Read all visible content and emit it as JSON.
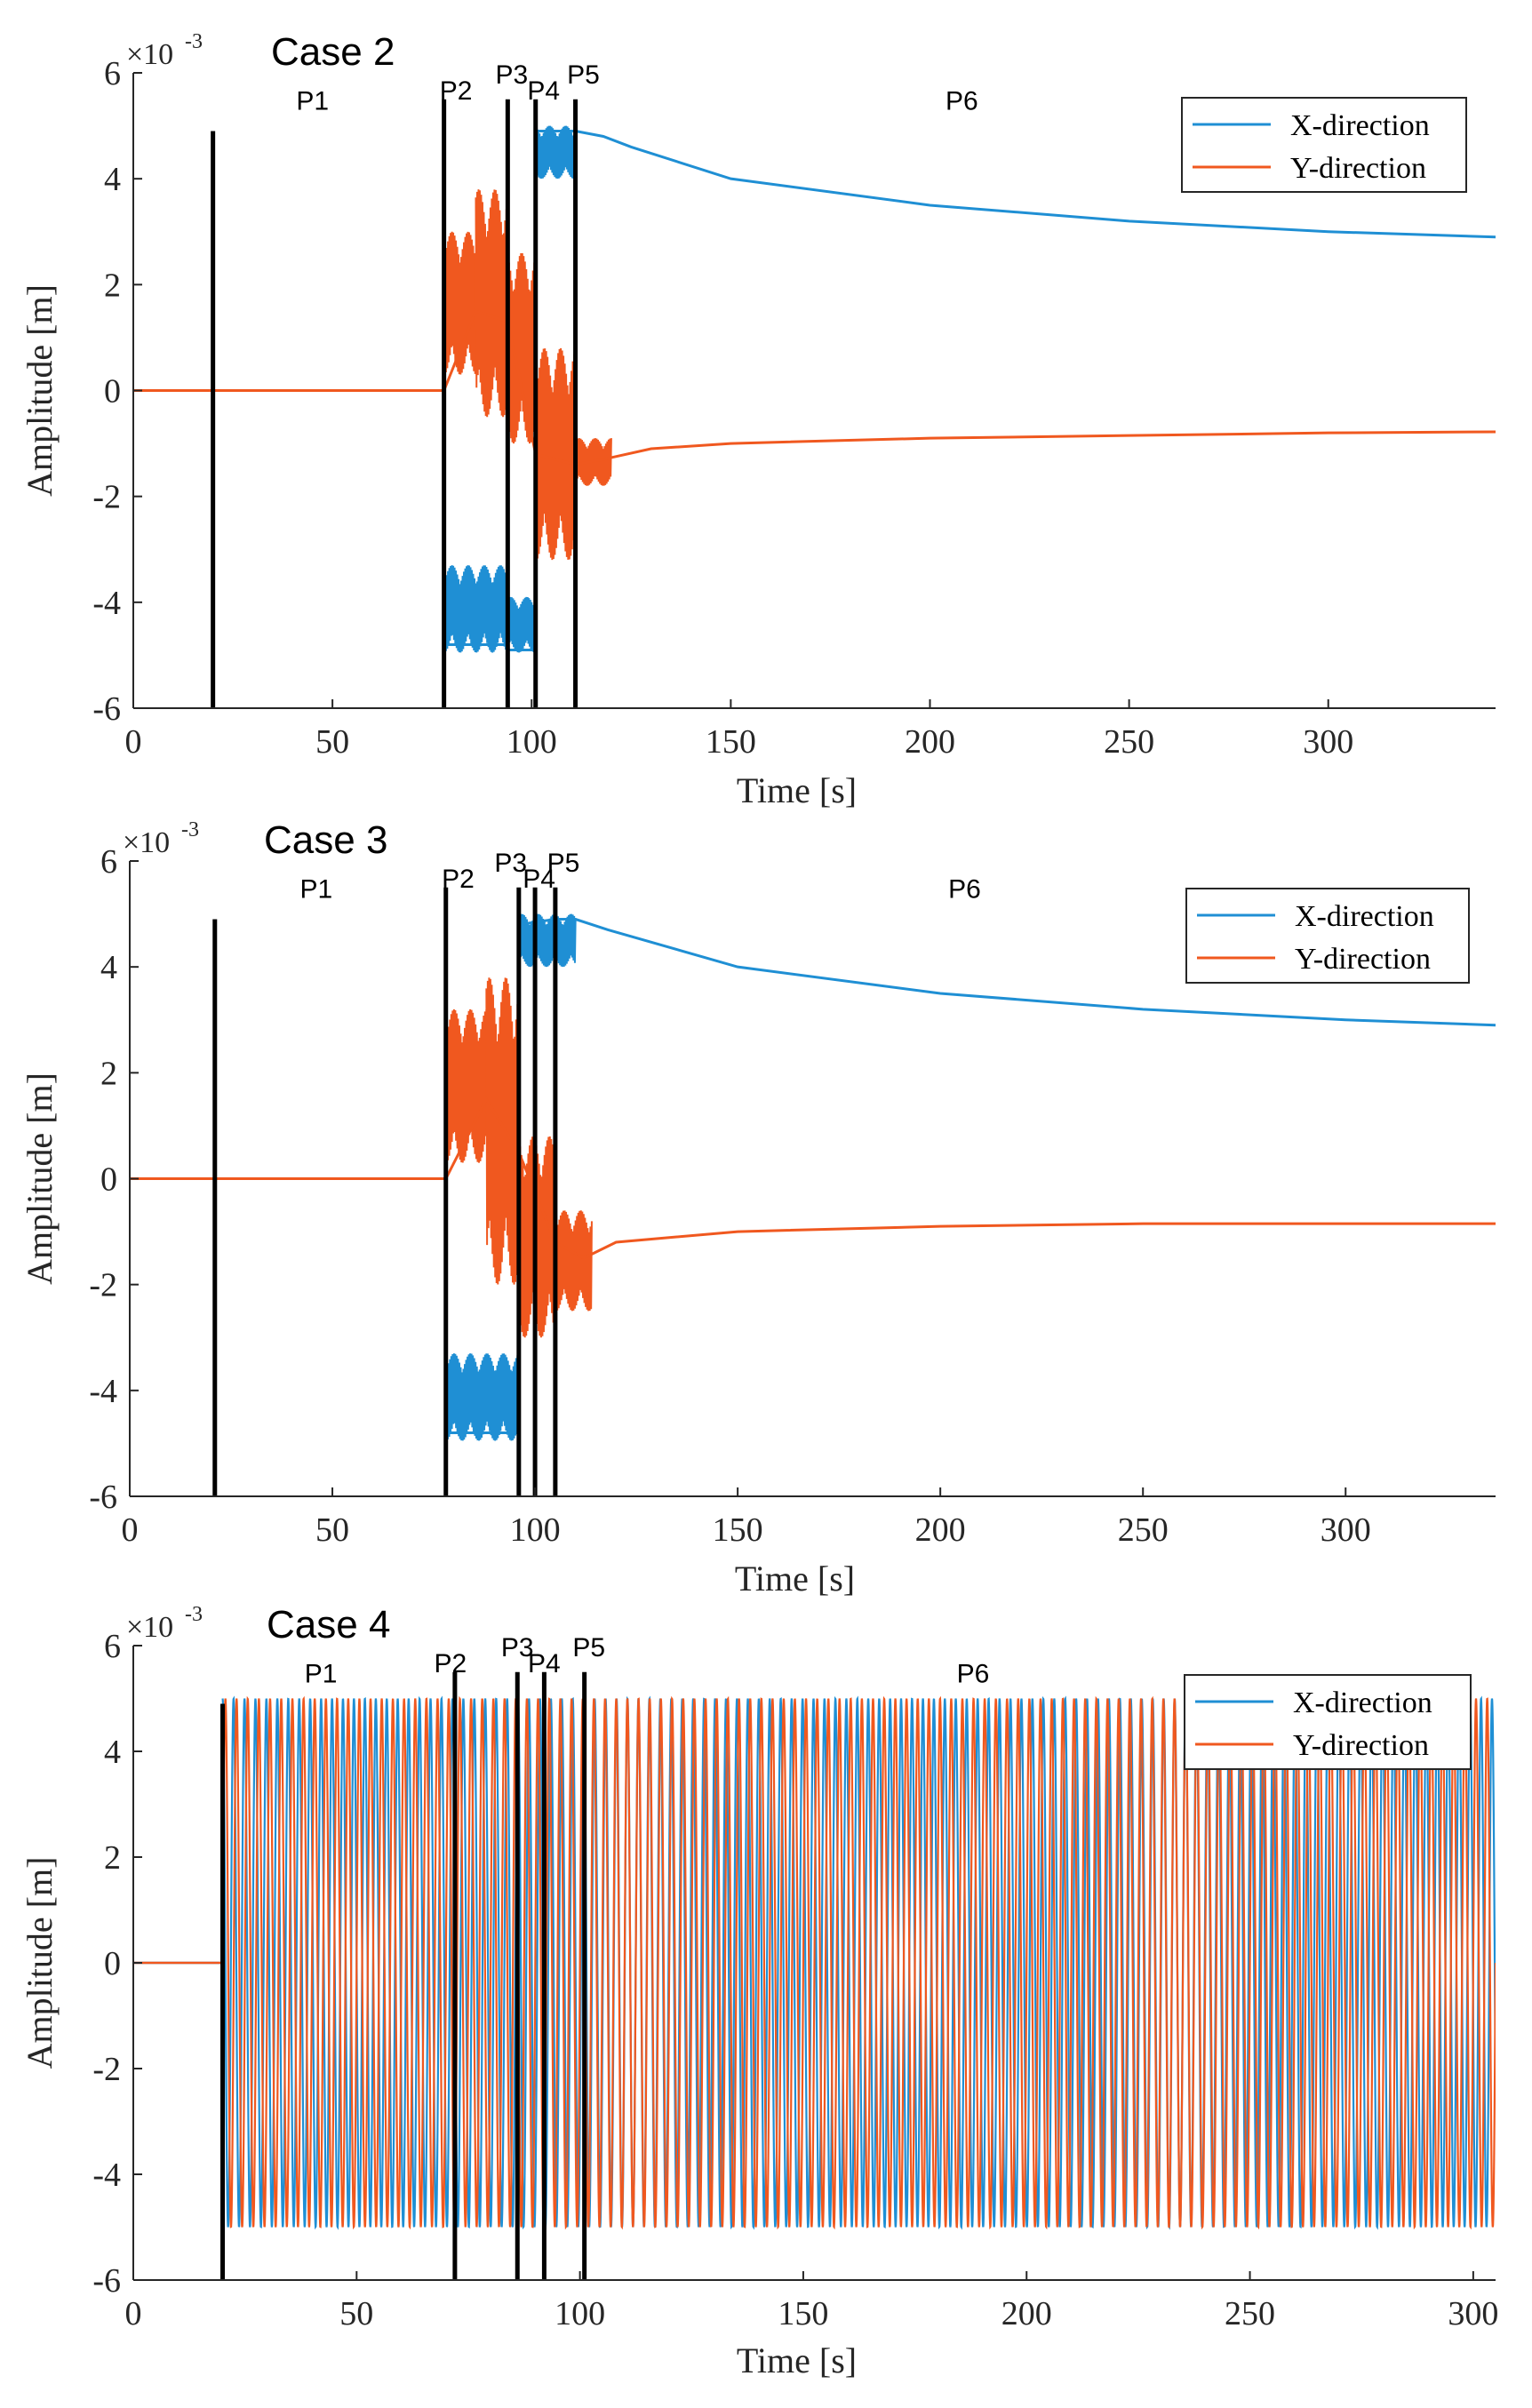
{
  "chart_data": [
    {
      "type": "line",
      "title": "Case 2",
      "xlabel": "Time [s]",
      "ylabel": "Amplitude [m]",
      "y_exponent": "×10",
      "y_exponent_power": "-3",
      "xlim": [
        0,
        342
      ],
      "ylim": [
        -6,
        6
      ],
      "xticks": [
        0,
        50,
        100,
        150,
        200,
        250,
        300
      ],
      "xtick_labels": [
        "0",
        "50",
        "100",
        "150",
        "200",
        "250",
        "300"
      ],
      "yticks": [
        -6,
        -4,
        -2,
        0,
        2,
        4,
        6
      ],
      "ytick_labels": [
        "-6",
        "-4",
        "-2",
        "0",
        "2",
        "4",
        "6"
      ],
      "legend": [
        "X-direction",
        "Y-direction"
      ],
      "legend_position": "top-right",
      "phase_lines": [
        20,
        78,
        94,
        101,
        111
      ],
      "phases": [
        {
          "label": "P1",
          "x": 45
        },
        {
          "label": "P2",
          "x": 81
        },
        {
          "label": "P3",
          "x": 95
        },
        {
          "label": "P4",
          "x": 103
        },
        {
          "label": "P5",
          "x": 113
        },
        {
          "label": "P6",
          "x": 208
        }
      ],
      "series": [
        {
          "name": "X-direction",
          "color": "#1f8fd4",
          "x": [
            0,
            78,
            78,
            94,
            94,
            101,
            101,
            111,
            118,
            125,
            150,
            200,
            250,
            300,
            342
          ],
          "y": [
            0,
            0,
            -4.8,
            -4.8,
            -4.9,
            -4.9,
            4.9,
            4.9,
            4.8,
            4.6,
            4.0,
            3.5,
            3.2,
            3.0,
            2.9
          ],
          "bands": [
            {
              "x0": 78,
              "x1": 94,
              "lo": -4.95,
              "hi": -3.3
            },
            {
              "x0": 94,
              "x1": 101,
              "lo": -4.95,
              "hi": -3.9
            },
            {
              "x0": 101,
              "x1": 111,
              "lo": 4.0,
              "hi": 5.0
            }
          ]
        },
        {
          "name": "Y-direction",
          "color": "#f0581f",
          "x": [
            0,
            78,
            86,
            94,
            101,
            111,
            118,
            130,
            150,
            200,
            250,
            300,
            342
          ],
          "y": [
            0,
            0,
            1.5,
            1.3,
            -1.2,
            -1.4,
            -1.3,
            -1.1,
            -1.0,
            -0.9,
            -0.85,
            -0.8,
            -0.78
          ],
          "bands": [
            {
              "x0": 78,
              "x1": 86,
              "lo": 0.3,
              "hi": 3.0
            },
            {
              "x0": 86,
              "x1": 94,
              "lo": -0.5,
              "hi": 3.8
            },
            {
              "x0": 94,
              "x1": 101,
              "lo": -1.0,
              "hi": 2.6
            },
            {
              "x0": 101,
              "x1": 111,
              "lo": -3.2,
              "hi": 0.8
            },
            {
              "x0": 111,
              "x1": 120,
              "lo": -1.8,
              "hi": -0.9
            }
          ]
        }
      ]
    },
    {
      "type": "line",
      "title": "Case 3",
      "xlabel": "Time [s]",
      "ylabel": "Amplitude [m]",
      "y_exponent": "×10",
      "y_exponent_power": "-3",
      "xlim": [
        0,
        337
      ],
      "ylim": [
        -6,
        6
      ],
      "xticks": [
        0,
        50,
        100,
        150,
        200,
        250,
        300
      ],
      "xtick_labels": [
        "0",
        "50",
        "100",
        "150",
        "200",
        "250",
        "300"
      ],
      "yticks": [
        -6,
        -4,
        -2,
        0,
        2,
        4,
        6
      ],
      "ytick_labels": [
        "-6",
        "-4",
        "-2",
        "0",
        "2",
        "4",
        "6"
      ],
      "legend": [
        "X-direction",
        "Y-direction"
      ],
      "legend_position": "top-right",
      "phase_lines": [
        21,
        78,
        96,
        100,
        105
      ],
      "phases": [
        {
          "label": "P1",
          "x": 46
        },
        {
          "label": "P2",
          "x": 81
        },
        {
          "label": "P3",
          "x": 94
        },
        {
          "label": "P4",
          "x": 101
        },
        {
          "label": "P5",
          "x": 107
        },
        {
          "label": "P6",
          "x": 206
        }
      ],
      "series": [
        {
          "name": "X-direction",
          "color": "#1f8fd4",
          "x": [
            0,
            78,
            78,
            96,
            96,
            105,
            110,
            118,
            150,
            200,
            250,
            300,
            337
          ],
          "y": [
            0,
            0,
            -4.8,
            -4.8,
            4.8,
            4.9,
            4.9,
            4.7,
            4.0,
            3.5,
            3.2,
            3.0,
            2.9
          ],
          "bands": [
            {
              "x0": 78,
              "x1": 96,
              "lo": -4.95,
              "hi": -3.3
            },
            {
              "x0": 96,
              "x1": 110,
              "lo": 4.0,
              "hi": 5.0
            }
          ]
        },
        {
          "name": "Y-direction",
          "color": "#f0581f",
          "x": [
            0,
            78,
            88,
            96,
            105,
            112,
            120,
            150,
            200,
            250,
            300,
            337
          ],
          "y": [
            0,
            0,
            1.5,
            0.5,
            -1.2,
            -1.5,
            -1.2,
            -1.0,
            -0.9,
            -0.85,
            -0.85,
            -0.85
          ],
          "bands": [
            {
              "x0": 78,
              "x1": 88,
              "lo": 0.3,
              "hi": 3.2
            },
            {
              "x0": 88,
              "x1": 96,
              "lo": -2.0,
              "hi": 3.8
            },
            {
              "x0": 96,
              "x1": 105,
              "lo": -3.0,
              "hi": 0.8
            },
            {
              "x0": 105,
              "x1": 114,
              "lo": -2.5,
              "hi": -0.6
            }
          ]
        }
      ]
    },
    {
      "type": "line",
      "title": "Case 4",
      "xlabel": "Time [s]",
      "ylabel": "Amplitude [m]",
      "y_exponent": "×10",
      "y_exponent_power": "-3",
      "xlim": [
        0,
        305
      ],
      "ylim": [
        -6,
        6
      ],
      "xticks": [
        0,
        50,
        100,
        150,
        200,
        250,
        300
      ],
      "xtick_labels": [
        "0",
        "50",
        "100",
        "150",
        "200",
        "250",
        "300"
      ],
      "yticks": [
        -6,
        -4,
        -2,
        0,
        2,
        4,
        6
      ],
      "ytick_labels": [
        "-6",
        "-4",
        "-2",
        "0",
        "2",
        "4",
        "6"
      ],
      "legend": [
        "X-direction",
        "Y-direction"
      ],
      "legend_position": "top-right",
      "phase_lines": [
        20,
        72,
        86,
        92,
        101
      ],
      "phases": [
        {
          "label": "P1",
          "x": 42
        },
        {
          "label": "P2",
          "x": 71
        },
        {
          "label": "P3",
          "x": 86
        },
        {
          "label": "P4",
          "x": 92
        },
        {
          "label": "P5",
          "x": 102
        },
        {
          "label": "P6",
          "x": 188
        }
      ],
      "series": [
        {
          "name": "X-direction",
          "color": "#1f8fd4",
          "x": [
            0,
            20,
            305
          ],
          "y": [
            0,
            0,
            0
          ],
          "oscillation": {
            "start": 20,
            "end": 305,
            "amplitude": 5.0,
            "period": 2.45,
            "phase": 1.57
          }
        },
        {
          "name": "Y-direction",
          "color": "#f0581f",
          "x": [
            0,
            20,
            305
          ],
          "y": [
            0,
            0,
            0
          ],
          "oscillation": {
            "start": 20,
            "end": 305,
            "amplitude": 5.0,
            "period": 2.5,
            "phase": 0
          }
        }
      ]
    }
  ]
}
